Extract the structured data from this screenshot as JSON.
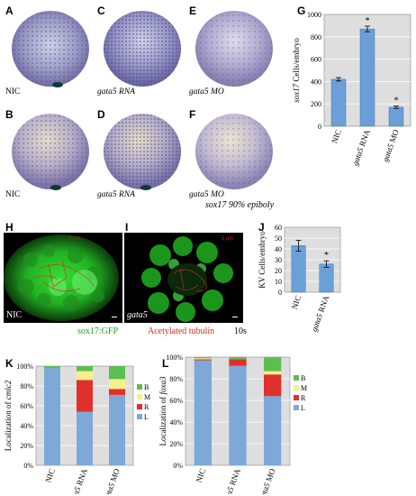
{
  "panels": {
    "A": "A",
    "B": "B",
    "C": "C",
    "D": "D",
    "E": "E",
    "F": "F",
    "G": "G",
    "H": "H",
    "I": "I",
    "J": "J",
    "K": "K",
    "L": "L"
  },
  "embryos": {
    "A": "NIC",
    "B": "NIC",
    "C": "gata5 RNA",
    "D": "gata5 RNA",
    "E": "gata5 MO",
    "F": "gata5 MO"
  },
  "embryo_footer": "sox17 90% epiboly",
  "micro": {
    "H_label": "NIC",
    "I_label": "gata5",
    "H_scale": "5 µm",
    "I_scale": "5 µm"
  },
  "legend": {
    "green": "sox17:GFP",
    "red": "Acetylated tubulin",
    "stage": "10s"
  },
  "colors": {
    "bar_blue": "#6a9fd8",
    "stack_L": "#7ea8d8",
    "stack_R": "#e0302c",
    "stack_M": "#f5ef8c",
    "stack_B": "#5bbf4f",
    "gfp_green": "#2fd12f",
    "tubulin_red": "#d42a1e"
  },
  "chart_data": [
    {
      "id": "G",
      "type": "bar",
      "categories": [
        "NIC",
        "gata5 RNA",
        "gata5 MO"
      ],
      "values": [
        420,
        870,
        170
      ],
      "errors": [
        15,
        25,
        10
      ],
      "significance": [
        "",
        "*",
        "*"
      ],
      "ylabel": "sox17 Cells/embryo",
      "ylim": [
        0,
        1000
      ],
      "yticks": [
        "0",
        "200",
        "400",
        "600",
        "800",
        "1000"
      ],
      "grid": true
    },
    {
      "id": "J",
      "type": "bar",
      "categories": [
        "NIC",
        "gata5 RNA"
      ],
      "values": [
        43,
        26
      ],
      "errors": [
        5,
        3
      ],
      "significance": [
        "",
        "*"
      ],
      "ylabel": "KV Cells/embryo",
      "ylim": [
        0,
        60
      ],
      "yticks": [
        "0",
        "10",
        "20",
        "30",
        "40",
        "50",
        "60"
      ],
      "grid": true
    },
    {
      "id": "K",
      "type": "bar",
      "stacked": true,
      "categories": [
        "NIC",
        "gata5 RNA",
        "gata5 MO"
      ],
      "series": [
        {
          "name": "L",
          "values": [
            98,
            54,
            71
          ]
        },
        {
          "name": "R",
          "values": [
            0,
            32,
            6
          ]
        },
        {
          "name": "M",
          "values": [
            0,
            9,
            10
          ]
        },
        {
          "name": "B",
          "values": [
            2,
            5,
            13
          ]
        }
      ],
      "legend_order": [
        "B",
        "M",
        "R",
        "L"
      ],
      "ylabel": "Localization of cmlc2",
      "ylim": [
        0,
        100
      ],
      "yticks": [
        "0%",
        "20%",
        "40%",
        "60%",
        "80%",
        "100%"
      ],
      "legend": "right"
    },
    {
      "id": "L",
      "type": "bar",
      "stacked": true,
      "categories": [
        "NIC",
        "gata5 RNA",
        "gata5 MO"
      ],
      "series": [
        {
          "name": "L",
          "values": [
            97,
            92,
            64
          ]
        },
        {
          "name": "R",
          "values": [
            1,
            6,
            20
          ]
        },
        {
          "name": "M",
          "values": [
            1,
            0,
            3
          ]
        },
        {
          "name": "B",
          "values": [
            1,
            2,
            13
          ]
        }
      ],
      "legend_order": [
        "B",
        "M",
        "R",
        "L"
      ],
      "ylabel": "Localization of foxa3",
      "ylim": [
        0,
        100
      ],
      "yticks": [
        "0%",
        "20%",
        "40%",
        "60%",
        "80%",
        "100%"
      ],
      "legend": "right"
    }
  ]
}
